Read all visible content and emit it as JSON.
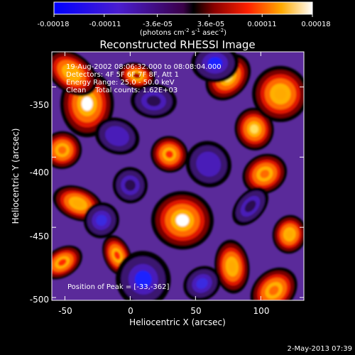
{
  "colorbar": {
    "tick_labels": [
      "-0.00018",
      "-0.00011",
      "-3.6e-05",
      "3.6e-05",
      "0.00011",
      "0.00018"
    ],
    "tick_values": [
      -0.00018,
      -0.00011,
      -3.6e-05,
      3.6e-05,
      0.00011,
      0.00018
    ],
    "range": [
      -0.00018,
      0.00018
    ],
    "unit_base": "(photons cm",
    "unit_exp1": "-2",
    "unit_mid": " s",
    "unit_exp2": "-1",
    "unit_mid2": " asec",
    "unit_exp3": "-2",
    "unit_end": ")"
  },
  "chart_data": {
    "type": "heatmap",
    "title": "Reconstructed RHESSI Image",
    "xlabel": "Heliocentric X (arcsec)",
    "ylabel": "Heliocentric Y (arcsec)",
    "xlim": [
      -60,
      133
    ],
    "ylim": [
      -502,
      -325
    ],
    "xticks": [
      -50,
      0,
      50,
      100
    ],
    "yticks": [
      -350,
      -400,
      -450,
      -500
    ],
    "xtick_labels": [
      "-50",
      "0",
      "50",
      "100"
    ],
    "ytick_labels": [
      "-350",
      "-400",
      "-450",
      "-500"
    ],
    "annotations": [
      "19-Aug-2002 08:06:32.000 to 08:08:04.000",
      "Detectors: 4F 5F 6F 7F 8F, Att 1",
      "Energy Range: 25.0 - 50.0 keV",
      "Clean    Total counts: 1.62E+03"
    ],
    "peak_label": "Position of Peak = [-33,-362]",
    "peak": [
      -33,
      -362
    ],
    "sources": [
      {
        "x": -33,
        "y": -362,
        "value": 0.00018
      },
      {
        "x": -45,
        "y": -340,
        "value": 0.00013
      },
      {
        "x": -52,
        "y": -395,
        "value": 9e-05
      },
      {
        "x": -40,
        "y": -433,
        "value": 0.00011
      },
      {
        "x": -52,
        "y": -475,
        "value": 8e-05
      },
      {
        "x": 40,
        "y": -445,
        "value": 0.00017
      },
      {
        "x": 75,
        "y": -343,
        "value": 0.00014
      },
      {
        "x": 95,
        "y": -380,
        "value": 0.00016
      },
      {
        "x": 115,
        "y": -355,
        "value": 0.00013
      },
      {
        "x": 103,
        "y": -412,
        "value": 0.0001
      },
      {
        "x": 122,
        "y": -455,
        "value": 0.00012
      },
      {
        "x": 110,
        "y": -495,
        "value": 0.0001
      },
      {
        "x": 78,
        "y": -478,
        "value": 0.00011
      },
      {
        "x": 30,
        "y": -398,
        "value": 7e-05
      },
      {
        "x": -10,
        "y": -470,
        "value": 6e-05
      },
      {
        "x": 5,
        "y": -342,
        "value": 5e-05
      },
      {
        "x": 60,
        "y": -405,
        "value": -9e-05
      },
      {
        "x": 65,
        "y": -333,
        "value": -0.00014
      },
      {
        "x": -22,
        "y": -445,
        "value": -0.00013
      },
      {
        "x": 10,
        "y": -487,
        "value": -0.00014
      },
      {
        "x": -10,
        "y": -385,
        "value": -0.0001
      },
      {
        "x": 55,
        "y": -490,
        "value": -0.00012
      },
      {
        "x": 18,
        "y": -360,
        "value": -8e-05
      },
      {
        "x": 92,
        "y": -435,
        "value": -7e-05
      },
      {
        "x": 0,
        "y": -420,
        "value": -6e-05
      }
    ]
  },
  "footer": {
    "date": "2-May-2013 07:39"
  },
  "colors": {
    "background": "#000000",
    "text": "#ffffff"
  }
}
